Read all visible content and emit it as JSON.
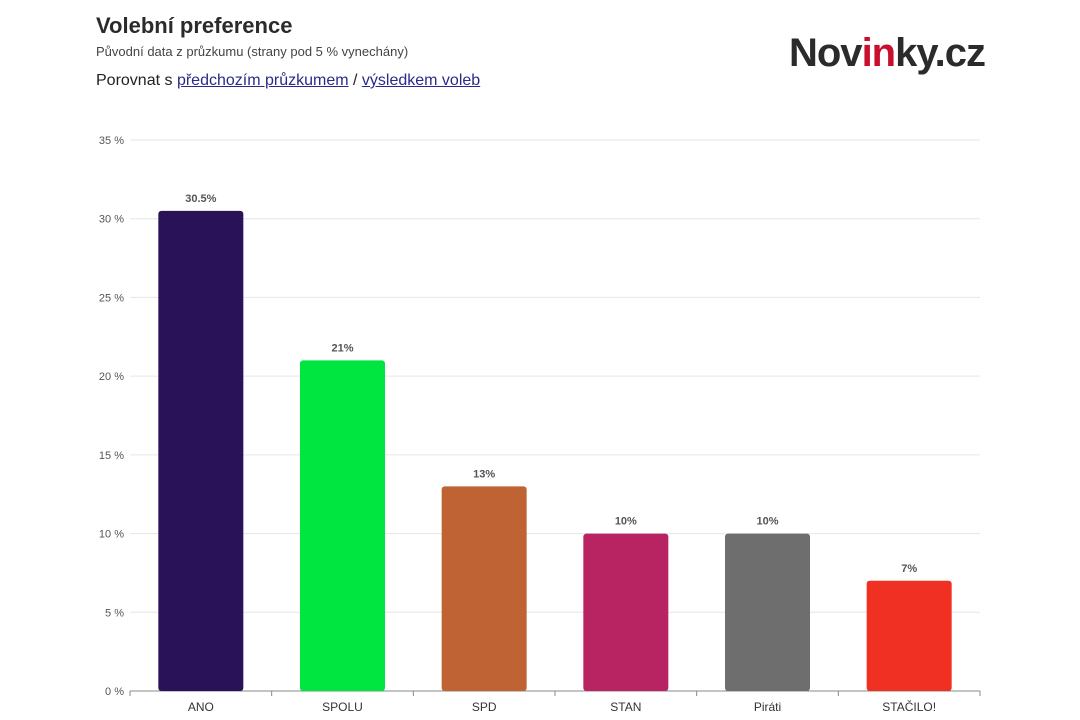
{
  "header": {
    "title": "Volební preference",
    "subtitle": "Původní data z průzkumu (strany pod 5 % vynechány)",
    "compare_prefix": "Porovnat s ",
    "compare_link1": "předchozím průzkumem",
    "compare_sep": " / ",
    "compare_link2": "výsledkem voleb"
  },
  "logo": {
    "part1": "Nov",
    "part2": "in",
    "part3": "ky.cz"
  },
  "chart_data": {
    "type": "bar",
    "title": "Volební preference",
    "subtitle": "Původní data z průzkumu (strany pod 5 % vynechány)",
    "categories": [
      "ANO",
      "SPOLU",
      "SPD",
      "STAN",
      "Piráti",
      "STAČILO!"
    ],
    "values": [
      30.5,
      21,
      13,
      10,
      10,
      7
    ],
    "value_labels": [
      "30.5%",
      "21%",
      "13%",
      "10%",
      "10%",
      "7%"
    ],
    "colors": [
      "#2a1259",
      "#00e641",
      "#c06334",
      "#b82462",
      "#6e6e6e",
      "#f03022"
    ],
    "ylim": [
      0,
      35
    ],
    "yticks": [
      0,
      5,
      10,
      15,
      20,
      25,
      30,
      35
    ],
    "ytick_labels": [
      "0 %",
      "5 %",
      "10 %",
      "15 %",
      "20 %",
      "25 %",
      "30 %",
      "35 %"
    ],
    "grid": true,
    "xlabel": "",
    "ylabel": ""
  }
}
